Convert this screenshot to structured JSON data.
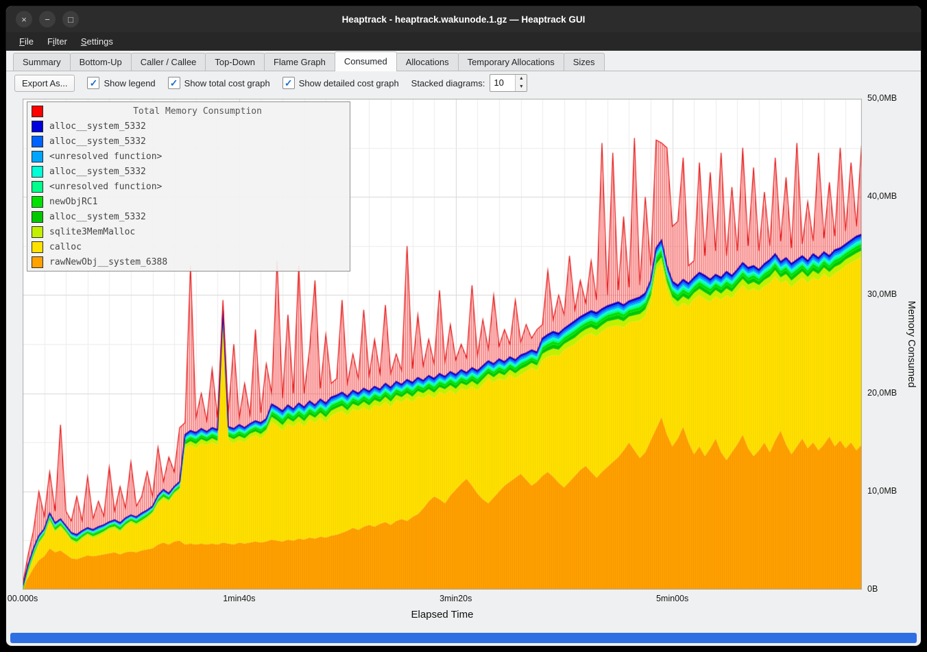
{
  "window": {
    "title": "Heaptrack - heaptrack.wakunode.1.gz — Heaptrack GUI",
    "controls": [
      {
        "name": "close",
        "glyph": "×"
      },
      {
        "name": "minimize",
        "glyph": "−"
      },
      {
        "name": "maximize",
        "glyph": "□"
      }
    ]
  },
  "menu": {
    "items": [
      {
        "label": "File",
        "mnemonic": 0
      },
      {
        "label": "Filter",
        "mnemonic": 1
      },
      {
        "label": "Settings",
        "mnemonic": 0
      }
    ]
  },
  "tabs": {
    "items": [
      "Summary",
      "Bottom-Up",
      "Caller / Callee",
      "Top-Down",
      "Flame Graph",
      "Consumed",
      "Allocations",
      "Temporary Allocations",
      "Sizes"
    ],
    "active_index": 5
  },
  "toolbar": {
    "export_label": "Export As...",
    "check_glyph": "✓",
    "checkboxes": [
      {
        "label": "Show legend",
        "checked": true
      },
      {
        "label": "Show total cost graph",
        "checked": true
      },
      {
        "label": "Show detailed cost graph",
        "checked": true
      }
    ],
    "stacked_label": "Stacked diagrams:",
    "stacked_value": "10",
    "spin_up_glyph": "▲",
    "spin_down_glyph": "▼"
  },
  "legend": {
    "title": "Total Memory Consumption",
    "title_color": "#ff0000",
    "entries": [
      {
        "label": "alloc__system_5332",
        "color": "#0000dc"
      },
      {
        "label": "alloc__system_5332",
        "color": "#0063ff"
      },
      {
        "label": "<unresolved function>",
        "color": "#00a5ff"
      },
      {
        "label": "alloc__system_5332",
        "color": "#00ffd7"
      },
      {
        "label": "<unresolved function>",
        "color": "#00ff8c"
      },
      {
        "label": "newObjRC1",
        "color": "#00e100"
      },
      {
        "label": "alloc__system_5332",
        "color": "#00c800"
      },
      {
        "label": "sqlite3MemMalloc",
        "color": "#c3f000"
      },
      {
        "label": "calloc",
        "color": "#ffe100"
      },
      {
        "label": "rawNewObj__system_6388",
        "color": "#ffa200"
      }
    ]
  },
  "axes": {
    "y_label": "Memory Consumed",
    "x_label": "Elapsed Time",
    "y_ticks": [
      {
        "v": 0,
        "label": "0B"
      },
      {
        "v": 10,
        "label": "10,0MB"
      },
      {
        "v": 20,
        "label": "20,0MB"
      },
      {
        "v": 30,
        "label": "30,0MB"
      },
      {
        "v": 40,
        "label": "40,0MB"
      },
      {
        "v": 50,
        "label": "50,0MB"
      }
    ],
    "x_ticks": [
      {
        "t": 0,
        "label": "00.000s"
      },
      {
        "t": 100,
        "label": "1min40s"
      },
      {
        "t": 200,
        "label": "3min20s"
      },
      {
        "t": 300,
        "label": "5min00s"
      }
    ]
  },
  "chart_data": {
    "type": "area",
    "stacked": true,
    "title": "Total Memory Consumption",
    "xlabel": "Elapsed Time",
    "ylabel": "Memory Consumed",
    "x_unit": "seconds",
    "y_unit": "MB",
    "ylim": [
      0,
      50
    ],
    "xlim": [
      0,
      387.5
    ],
    "t_step": 2.5,
    "grid": {
      "x_minor_s": 10,
      "y_minor_mb": 5
    },
    "colors": {
      "total_red": "#ff0000",
      "blue_line": "#0000cc",
      "orange": "#ffa200",
      "yellow": "#ffe100"
    },
    "series": {
      "orange_top": [
        0.2,
        1.2,
        2.2,
        3.0,
        3.4,
        4.2,
        3.8,
        4.0,
        3.6,
        3.2,
        3.1,
        3.3,
        3.5,
        3.4,
        3.5,
        3.6,
        3.7,
        3.8,
        3.6,
        3.8,
        3.9,
        3.8,
        4.0,
        4.1,
        4.2,
        4.6,
        4.8,
        4.6,
        4.9,
        5.0,
        4.6,
        4.7,
        4.6,
        4.7,
        4.6,
        4.7,
        4.6,
        4.8,
        4.7,
        4.6,
        4.8,
        4.7,
        4.8,
        4.9,
        4.8,
        4.9,
        5.1,
        5.0,
        4.9,
        5.1,
        5.0,
        5.2,
        5.1,
        5.3,
        5.2,
        5.4,
        5.3,
        5.5,
        5.6,
        5.8,
        6.0,
        6.3,
        6.1,
        6.4,
        6.6,
        6.4,
        6.7,
        6.9,
        6.6,
        7.0,
        7.2,
        7.0,
        7.4,
        7.7,
        8.3,
        9.0,
        9.5,
        9.2,
        8.8,
        9.6,
        10.2,
        10.8,
        11.3,
        10.6,
        9.8,
        9.2,
        8.8,
        9.4,
        10.0,
        10.6,
        11.0,
        11.4,
        11.8,
        11.2,
        10.6,
        11.0,
        11.6,
        12.0,
        11.5,
        10.9,
        10.4,
        11.0,
        11.6,
        12.2,
        12.6,
        12.0,
        11.4,
        12.0,
        12.5,
        13.0,
        13.5,
        14.2,
        15.0,
        14.2,
        13.4,
        14.0,
        15.2,
        16.4,
        17.6,
        15.8,
        14.6,
        15.4,
        16.6,
        15.0,
        13.8,
        14.6,
        13.6,
        14.4,
        15.4,
        14.0,
        13.2,
        14.0,
        14.8,
        15.8,
        14.4,
        13.6,
        14.2,
        15.0,
        14.0,
        15.2,
        16.2,
        14.8,
        13.8,
        14.6,
        15.4,
        14.4,
        15.0,
        14.2,
        14.8,
        15.6,
        14.6,
        15.2,
        14.4,
        15.0,
        14.2,
        14.8
      ],
      "stack_top": [
        0.3,
        2.5,
        4.2,
        5.5,
        6.2,
        7.8,
        6.8,
        7.2,
        6.5,
        5.8,
        5.6,
        6.0,
        6.3,
        6.1,
        6.4,
        6.6,
        6.9,
        7.1,
        6.8,
        7.3,
        7.6,
        7.4,
        7.8,
        8.1,
        8.5,
        9.6,
        10.2,
        9.8,
        10.5,
        11.0,
        15.8,
        16.2,
        16.0,
        16.4,
        16.1,
        16.5,
        16.3,
        28.5,
        16.6,
        16.4,
        16.8,
        16.5,
        16.9,
        17.2,
        17.0,
        17.4,
        18.9,
        18.6,
        18.2,
        18.8,
        18.4,
        19.0,
        18.6,
        19.2,
        18.8,
        19.4,
        19.0,
        19.6,
        19.8,
        20.1,
        19.7,
        20.3,
        20.0,
        20.5,
        20.2,
        20.7,
        20.4,
        21.0,
        20.6,
        21.2,
        20.9,
        21.4,
        21.1,
        21.6,
        21.3,
        21.8,
        21.5,
        22.0,
        21.7,
        22.2,
        21.9,
        22.4,
        22.1,
        22.6,
        22.3,
        22.8,
        23.3,
        23.0,
        23.5,
        23.2,
        23.7,
        23.4,
        23.9,
        24.1,
        24.4,
        24.2,
        25.6,
        26.0,
        26.3,
        26.1,
        26.6,
        27.0,
        27.4,
        27.8,
        28.1,
        28.4,
        28.2,
        28.6,
        28.9,
        29.1,
        29.3,
        29.0,
        29.4,
        29.6,
        29.8,
        30.2,
        31.5,
        34.8,
        35.6,
        33.0,
        31.4,
        31.0,
        31.6,
        31.2,
        31.8,
        32.3,
        32.0,
        31.6,
        32.1,
        31.8,
        32.4,
        32.0,
        32.6,
        33.3,
        32.8,
        33.0,
        32.6,
        33.2,
        33.6,
        34.2,
        33.4,
        33.8,
        33.2,
        33.6,
        34.0,
        33.5,
        34.2,
        33.8,
        34.4,
        34.0,
        34.6,
        34.8,
        35.2,
        35.6,
        36.0,
        36.2
      ],
      "green_band_thickness": [
        0.8,
        0.9,
        1.0,
        0.9,
        0.8,
        0.9,
        1.0,
        0.9,
        0.8,
        0.9,
        1.0,
        0.9,
        0.8,
        0.9,
        1.0,
        0.9,
        0.8,
        0.9,
        1.0,
        0.9,
        0.8,
        0.9,
        1.0,
        0.9,
        0.8,
        0.9,
        1.0,
        0.9,
        0.8,
        0.9,
        1.4,
        1.5,
        1.6,
        1.5,
        1.4,
        1.5,
        1.6,
        1.5,
        1.4,
        1.5,
        1.6,
        1.5,
        1.4,
        1.5,
        1.6,
        1.5,
        1.8,
        1.9,
        2.0,
        1.9,
        1.8,
        1.9,
        2.0,
        1.9,
        1.8,
        1.9,
        2.0,
        1.9,
        1.8,
        1.9,
        2.0,
        1.9,
        1.8,
        1.9,
        2.0,
        1.9,
        1.8,
        1.9,
        2.0,
        1.9,
        1.8,
        1.9,
        2.0,
        1.9,
        1.8,
        1.9,
        2.0,
        1.9,
        1.8,
        1.9,
        2.0,
        1.9,
        1.8,
        1.9,
        2.0,
        1.9,
        1.8,
        1.9,
        2.0,
        1.9,
        1.8,
        1.9,
        2.0,
        1.9,
        1.8,
        1.9,
        2.2,
        2.3,
        2.4,
        2.3,
        2.2,
        2.3,
        2.4,
        2.3,
        2.2,
        2.3,
        2.4,
        2.3,
        2.2,
        2.3,
        2.4,
        2.3,
        2.2,
        2.3,
        2.4,
        2.3,
        2.2,
        2.3,
        2.4,
        2.3,
        2.2,
        2.3,
        2.4,
        2.3,
        2.2,
        2.3,
        2.4,
        2.3,
        2.2,
        2.3,
        2.4,
        2.3,
        2.2,
        2.3,
        2.4,
        2.3,
        2.2,
        2.3,
        2.4,
        2.3,
        2.2,
        2.3,
        2.4,
        2.3,
        2.2,
        2.3,
        2.4,
        2.3,
        2.2,
        2.3,
        2.4,
        2.3,
        2.2,
        2.3,
        2.4,
        2.3
      ],
      "total": [
        0.5,
        3.5,
        6.0,
        10.0,
        7.5,
        12.0,
        8.0,
        16.8,
        8.0,
        7.0,
        9.5,
        7.0,
        11.5,
        7.2,
        9.0,
        7.5,
        12.5,
        8.0,
        10.5,
        8.3,
        13.0,
        8.5,
        9.5,
        12.0,
        9.5,
        14.5,
        11.0,
        13.5,
        12.0,
        16.5,
        17.0,
        33.0,
        17.5,
        20.0,
        17.2,
        22.5,
        17.5,
        29.5,
        18.0,
        25.0,
        17.5,
        21.0,
        17.8,
        26.5,
        18.0,
        23.0,
        20.0,
        33.5,
        19.5,
        28.0,
        20.0,
        33.0,
        20.0,
        24.5,
        31.5,
        20.5,
        26.0,
        21.0,
        21.5,
        29.5,
        21.0,
        24.0,
        21.5,
        28.5,
        21.8,
        25.5,
        22.0,
        29.0,
        22.0,
        24.0,
        22.3,
        35.0,
        22.5,
        28.0,
        22.8,
        25.5,
        23.0,
        30.5,
        23.2,
        27.0,
        23.4,
        25.0,
        23.6,
        31.0,
        23.8,
        27.5,
        24.5,
        30.0,
        24.8,
        26.5,
        25.0,
        29.5,
        25.2,
        27.0,
        25.6,
        26.5,
        27.0,
        32.5,
        27.5,
        30.0,
        28.0,
        34.0,
        28.5,
        31.5,
        29.2,
        33.5,
        29.5,
        45.5,
        30.0,
        44.5,
        30.5,
        38.0,
        30.8,
        46.0,
        31.0,
        40.0,
        33.0,
        45.8,
        45.5,
        45.0,
        37.0,
        37.5,
        44.0,
        33.0,
        33.5,
        43.5,
        34.0,
        42.5,
        34.5,
        44.5,
        34.0,
        41.0,
        34.5,
        45.0,
        35.0,
        43.0,
        34.5,
        40.5,
        35.0,
        44.0,
        35.5,
        42.0,
        34.8,
        45.5,
        35.2,
        39.5,
        35.5,
        44.5,
        35.8,
        41.5,
        36.0,
        45.0,
        36.5,
        43.5,
        37.0,
        45.8
      ]
    },
    "thin_layers_bottom_to_top": [
      {
        "name": "sqlite3MemMalloc",
        "color": "#c3f000",
        "fraction": 0.28
      },
      {
        "name": "alloc__system_5332",
        "color": "#00c800",
        "fraction": 0.17
      },
      {
        "name": "newObjRC1",
        "color": "#00e100",
        "fraction": 0.13
      },
      {
        "name": "<unresolved function>",
        "color": "#00ff8c",
        "fraction": 0.09
      },
      {
        "name": "alloc__system_5332",
        "color": "#00ffd7",
        "fraction": 0.08
      },
      {
        "name": "<unresolved function>",
        "color": "#00a5ff",
        "fraction": 0.08
      },
      {
        "name": "alloc__system_5332",
        "color": "#0063ff",
        "fraction": 0.09
      },
      {
        "name": "alloc__system_5332",
        "color": "#0000dc",
        "fraction": 0.08
      }
    ]
  }
}
